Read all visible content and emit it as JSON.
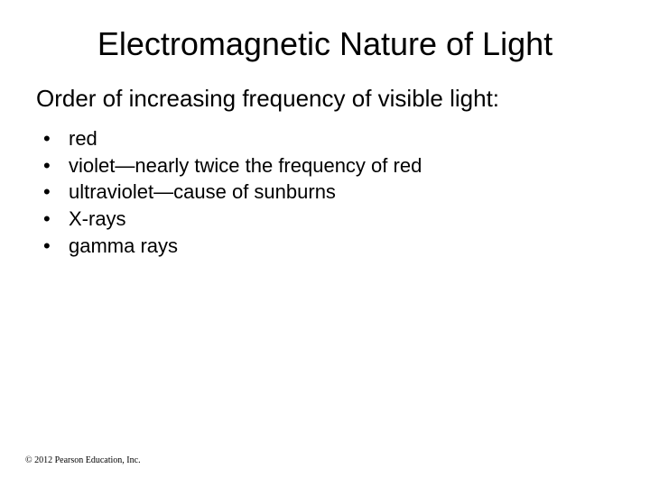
{
  "title": "Electromagnetic Nature of Light",
  "subtitle": "Order of increasing frequency of visible light:",
  "bullets": [
    "red",
    "violet—nearly twice the frequency of red",
    "ultraviolet—cause of sunburns",
    "X-rays",
    "gamma rays"
  ],
  "footer": "© 2012 Pearson Education, Inc.",
  "styling": {
    "background_color": "#ffffff",
    "text_color": "#000000",
    "title_fontsize": 36,
    "subtitle_fontsize": 26,
    "bullet_fontsize": 22,
    "footer_fontsize": 10,
    "font_family": "Arial"
  }
}
